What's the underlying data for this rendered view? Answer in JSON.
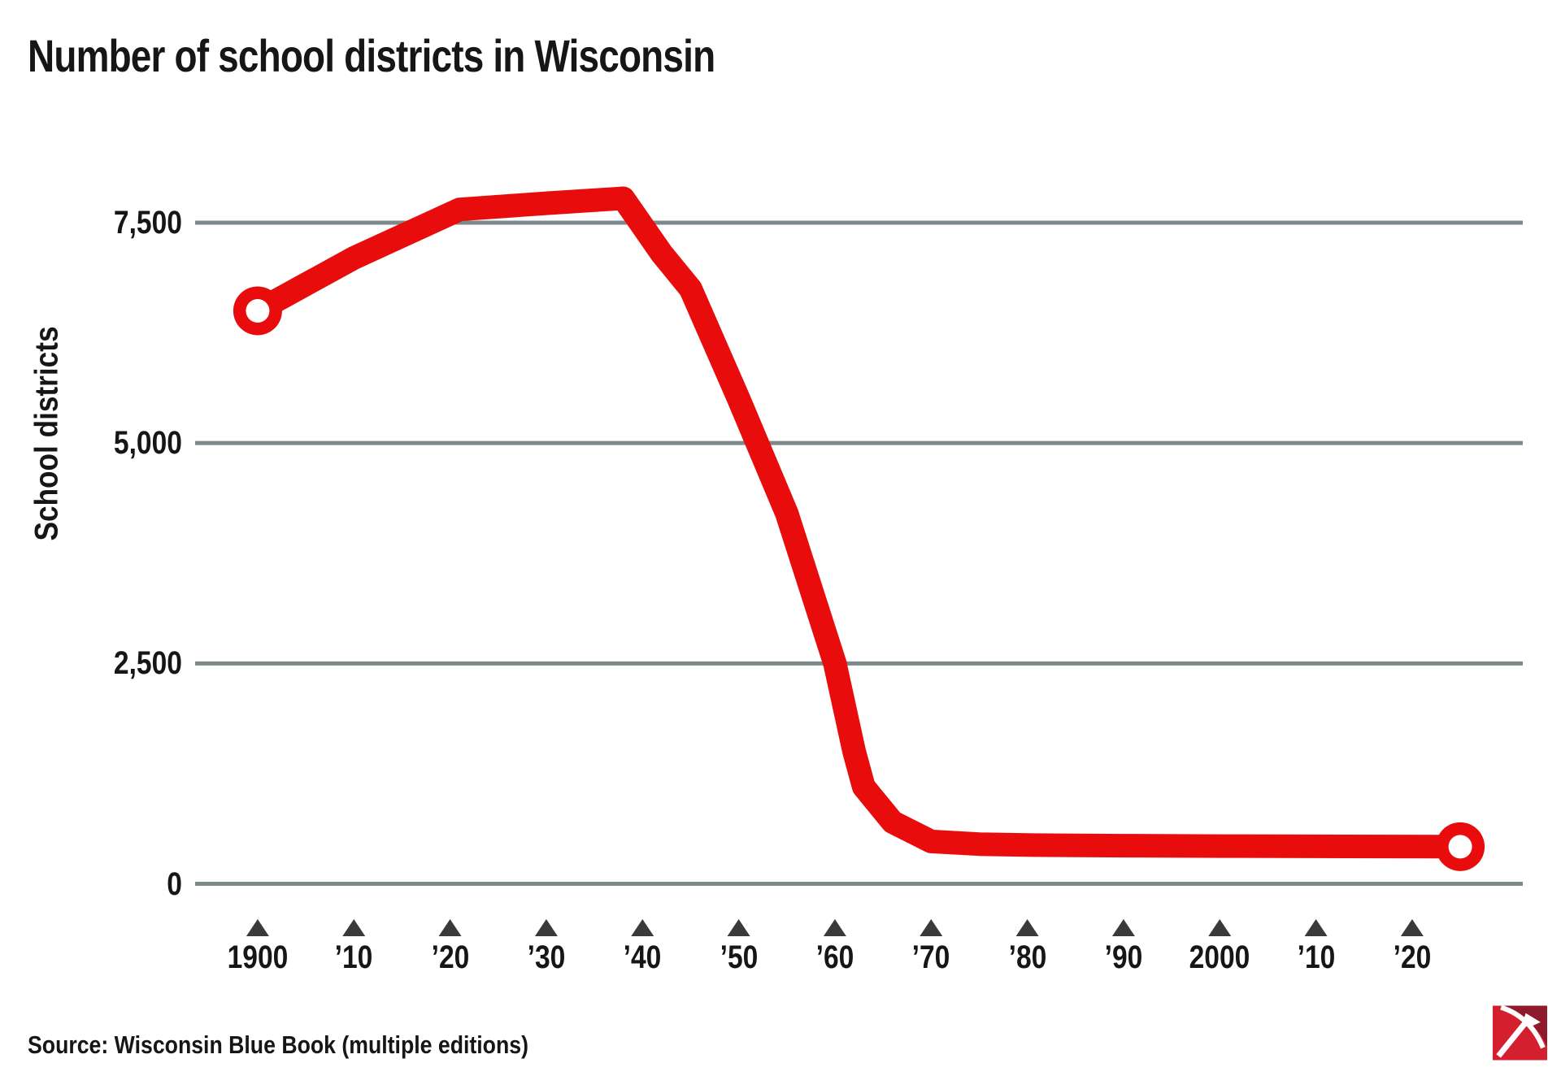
{
  "title": "Number of school districts in Wisconsin",
  "source": "Source: Wisconsin Blue Book (multiple editions)",
  "logo": {
    "name": "red-pickaxe-publisher-logo",
    "bright_red": "#d41f2f",
    "dark_red": "#8e1a2b",
    "glyph": "#ffffff"
  },
  "chart_data": {
    "type": "line",
    "title": "Number of school districts in Wisconsin",
    "xlabel": "",
    "ylabel": "School districts",
    "ylim": [
      0,
      7500
    ],
    "xlim": [
      1893.5,
      2031.5
    ],
    "grid": "horizontal gridlines at each y tick, including zero line",
    "legend": "none",
    "line_color": "#e80c0c",
    "line_width": 29,
    "gridline_color": "#7e898c",
    "tick_marker_color": "#3a3a3c",
    "text_color": "#161616",
    "endpoint_markers": "open circles at first and last data points",
    "y_ticks": [
      {
        "value": 0,
        "label": "0"
      },
      {
        "value": 2500,
        "label": "2,500"
      },
      {
        "value": 5000,
        "label": "5,000"
      },
      {
        "value": 7500,
        "label": "7,500"
      }
    ],
    "x_ticks": [
      {
        "year": 1900,
        "label": "1900"
      },
      {
        "year": 1910,
        "label": "’10"
      },
      {
        "year": 1920,
        "label": "’20"
      },
      {
        "year": 1930,
        "label": "’30"
      },
      {
        "year": 1940,
        "label": "’40"
      },
      {
        "year": 1950,
        "label": "’50"
      },
      {
        "year": 1960,
        "label": "’60"
      },
      {
        "year": 1970,
        "label": "’70"
      },
      {
        "year": 1980,
        "label": "’80"
      },
      {
        "year": 1990,
        "label": "’90"
      },
      {
        "year": 2000,
        "label": "2000"
      },
      {
        "year": 2010,
        "label": "’10"
      },
      {
        "year": 2020,
        "label": "’20"
      }
    ],
    "series": [
      {
        "name": "School districts",
        "points": [
          {
            "year": 1900,
            "value": 6500
          },
          {
            "year": 1910,
            "value": 7100
          },
          {
            "year": 1921,
            "value": 7650
          },
          {
            "year": 1930,
            "value": 7720
          },
          {
            "year": 1938,
            "value": 7777
          },
          {
            "year": 1942,
            "value": 7150
          },
          {
            "year": 1945,
            "value": 6750
          },
          {
            "year": 1950,
            "value": 5500
          },
          {
            "year": 1955,
            "value": 4200
          },
          {
            "year": 1960,
            "value": 2500
          },
          {
            "year": 1962,
            "value": 1500
          },
          {
            "year": 1963,
            "value": 1100
          },
          {
            "year": 1966,
            "value": 700
          },
          {
            "year": 1970,
            "value": 480
          },
          {
            "year": 1975,
            "value": 450
          },
          {
            "year": 1980,
            "value": 440
          },
          {
            "year": 1990,
            "value": 432
          },
          {
            "year": 2000,
            "value": 428
          },
          {
            "year": 2010,
            "value": 425
          },
          {
            "year": 2025,
            "value": 421
          }
        ]
      }
    ]
  }
}
